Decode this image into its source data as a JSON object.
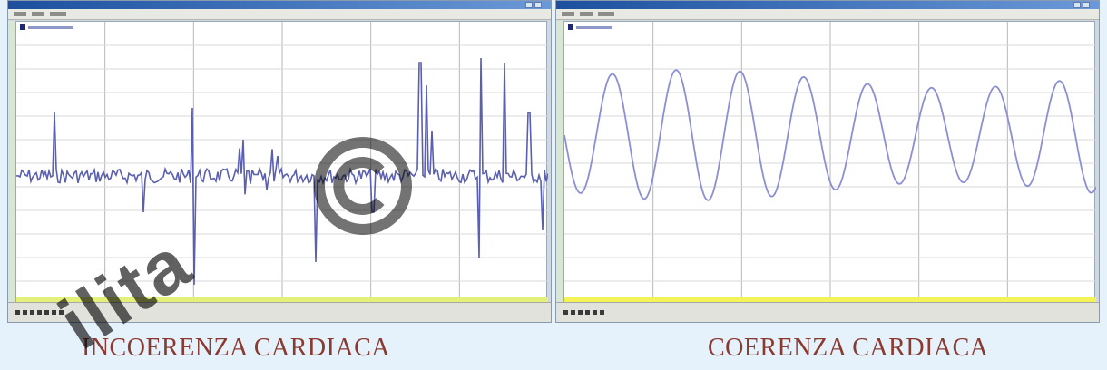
{
  "left_panel": {
    "caption": "INCOERENZA CARDIACA",
    "series_color": "#5a5fb0",
    "grid_color": "#b7b7b7",
    "bottom_band_color": "#e3f07a"
  },
  "right_panel": {
    "caption": "COERENZA CARDIACA",
    "series_color": "#8b8fd4",
    "grid_color": "#b7b7b7",
    "bottom_band_color": "#f3f257"
  },
  "watermark": {
    "symbol": "©",
    "text": "ilita"
  },
  "colors": {
    "background": "#e6f2fb",
    "caption": "#8a3a30",
    "titlebar": "#1d4f9e"
  }
}
